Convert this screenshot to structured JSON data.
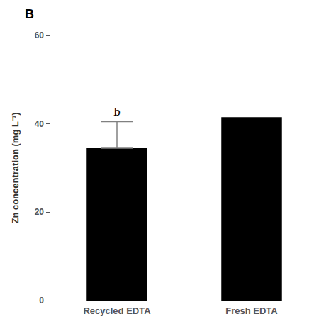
{
  "chart_data": {
    "type": "bar",
    "title": "B",
    "categories": [
      "Recycled EDTA",
      "Fresh EDTA"
    ],
    "values": [
      34.5,
      41.5
    ],
    "error_high": [
      40.5,
      null
    ],
    "sig_labels": [
      "b",
      null
    ],
    "color": "#000000",
    "ylabel": "Zn concentration (mg L⁻¹)",
    "ylim": [
      0,
      60
    ],
    "yticks": [
      0,
      20,
      40,
      60
    ],
    "grid": false
  }
}
